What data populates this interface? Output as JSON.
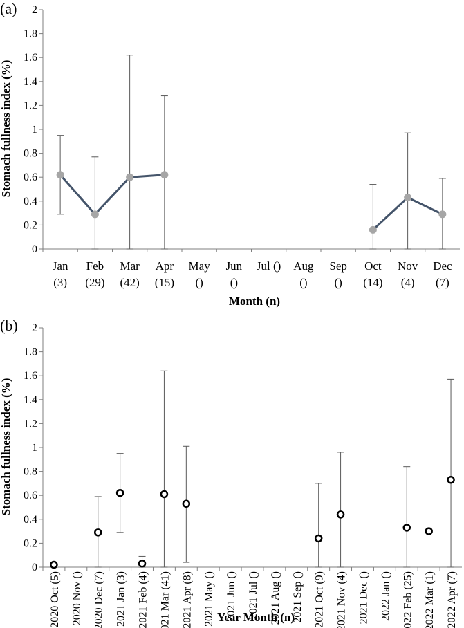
{
  "chart_data": [
    {
      "panel_label": "(a)",
      "type": "line",
      "ylabel": "Stomach fullness index (%)",
      "xlabel": "Month (n)",
      "ylim": [
        0,
        2
      ],
      "y_ticks": [
        "0",
        "0.2",
        "0.4",
        "0.6",
        "0.8",
        "1",
        "1.2",
        "1.4",
        "1.6",
        "1.8",
        "2"
      ],
      "categories": [
        [
          "Jan",
          "(3)"
        ],
        [
          "Feb",
          "(29)"
        ],
        [
          "Mar",
          "(42)"
        ],
        [
          "Apr",
          "(15)"
        ],
        [
          "May",
          "()"
        ],
        [
          "Jun",
          "()"
        ],
        [
          "Jul ()"
        ],
        [
          "Aug",
          "()"
        ],
        [
          "Sep",
          "()"
        ],
        [
          "Oct",
          "(14)"
        ],
        [
          "Nov",
          "(4)"
        ],
        [
          "Dec",
          "(7)"
        ]
      ],
      "values": [
        0.62,
        0.29,
        0.6,
        0.62,
        null,
        null,
        null,
        null,
        null,
        0.16,
        0.43,
        0.29
      ],
      "error_upper": [
        0.95,
        0.77,
        1.62,
        1.28,
        null,
        null,
        null,
        null,
        null,
        0.54,
        0.97,
        0.59
      ],
      "error_lower": [
        0.29,
        0.0,
        0.0,
        0.0,
        null,
        null,
        null,
        null,
        null,
        0.0,
        0.0,
        0.0
      ],
      "line_color": "#44546a",
      "marker_color": "#a6a6a6",
      "grid": false
    },
    {
      "panel_label": "(b)",
      "type": "scatter",
      "ylabel": "Stomach fullness index (%)",
      "xlabel": "Year Month (n)",
      "ylim": [
        0,
        2
      ],
      "y_ticks": [
        "0",
        "0.2",
        "0.4",
        "0.6",
        "0.8",
        "1",
        "1.2",
        "1.4",
        "1.6",
        "1.8",
        "2"
      ],
      "categories": [
        "2020 Oct (5)",
        "2020 Nov ()",
        "2020 Dec (7)",
        "2021 Jan (3)",
        "2021 Feb (4)",
        "2021 Mar (41)",
        "2021 Apr (8)",
        "2021 May ()",
        "2021 Jun ()",
        "2021 Jul ()",
        "2021 Aug ()",
        "2021 Sep ()",
        "2021 Oct (9)",
        "2021 Nov (4)",
        "2021 Dec ()",
        "2022 Jan ()",
        "2022 Feb (25)",
        "2022 Mar (1)",
        "2022 Apr (7)"
      ],
      "values": [
        0.02,
        null,
        0.29,
        0.62,
        0.03,
        0.61,
        0.53,
        null,
        null,
        null,
        null,
        null,
        0.24,
        0.44,
        null,
        null,
        0.33,
        0.3,
        0.73
      ],
      "error_upper": [
        0.04,
        null,
        0.59,
        0.95,
        0.09,
        1.64,
        1.01,
        null,
        null,
        null,
        null,
        null,
        0.7,
        0.96,
        null,
        null,
        0.84,
        null,
        1.57
      ],
      "error_lower": [
        0.0,
        null,
        0.0,
        0.29,
        0.0,
        0.0,
        0.04,
        null,
        null,
        null,
        null,
        null,
        0.0,
        0.0,
        null,
        null,
        0.0,
        null,
        0.0
      ],
      "marker_color": "#000000",
      "grid": false
    }
  ]
}
